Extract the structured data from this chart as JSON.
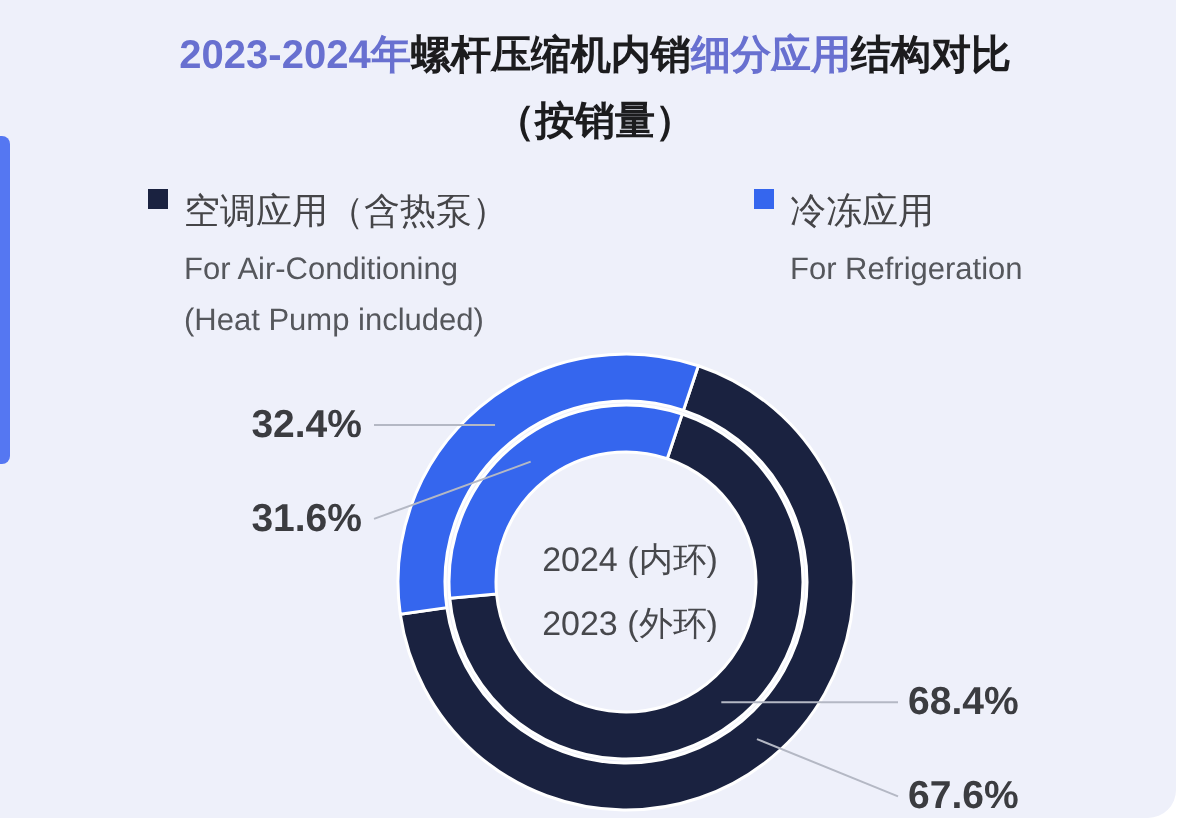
{
  "chart_data": {
    "type": "donut",
    "title": "2023-2024年螺杆压缩机内销细分应用结构对比",
    "subtitle": "（按销量）",
    "categories": [
      "空调应用（含热泵）\nFor Air-Conditioning\n(Heat Pump included)",
      "冷冻应用\nFor Refrigeration"
    ],
    "colors": [
      "#1a2240",
      "#3566ee"
    ],
    "series": [
      {
        "values": [
          68.4,
          31.6
        ],
        "value_labels": [
          "68.4%",
          "31.6%"
        ]
      },
      {
        "values": [
          67.6,
          32.4
        ],
        "value_labels": [
          "67.6%",
          "32.4%"
        ]
      }
    ],
    "annotations": [
      "2024 (内环)",
      "2023 (外环)"
    ],
    "legend": "top"
  }
}
